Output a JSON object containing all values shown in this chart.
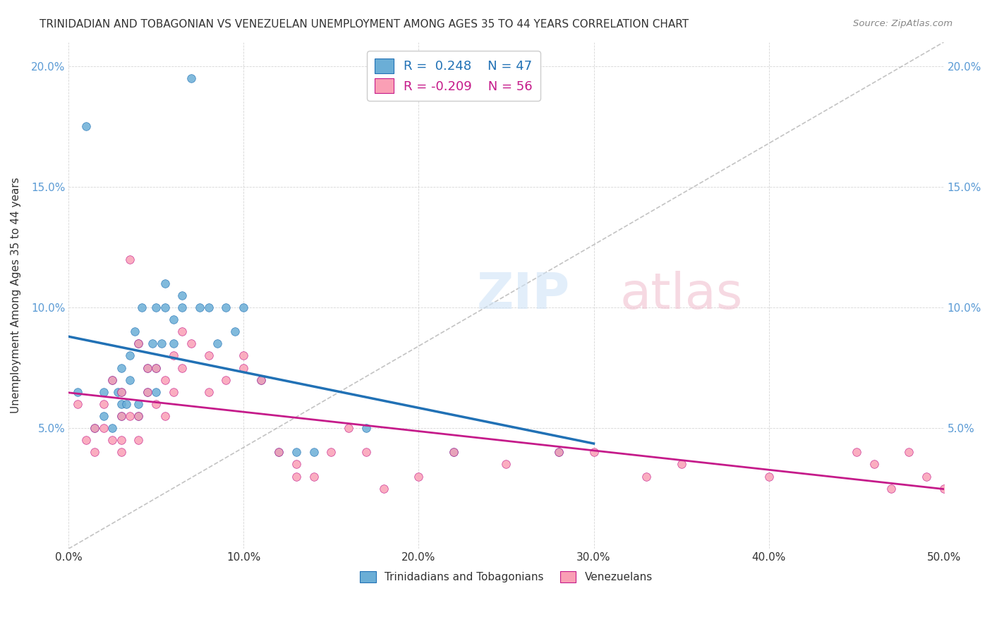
{
  "title": "TRINIDADIAN AND TOBAGONIAN VS VENEZUELAN UNEMPLOYMENT AMONG AGES 35 TO 44 YEARS CORRELATION CHART",
  "source": "Source: ZipAtlas.com",
  "xlabel": "",
  "ylabel": "Unemployment Among Ages 35 to 44 years",
  "xlim": [
    0,
    0.5
  ],
  "ylim": [
    0,
    0.21
  ],
  "xticks": [
    0.0,
    0.1,
    0.2,
    0.3,
    0.4,
    0.5
  ],
  "xticklabels": [
    "0.0%",
    "10.0%",
    "20.0%",
    "30.0%",
    "40.0%",
    "50.0%"
  ],
  "yticks": [
    0.0,
    0.05,
    0.1,
    0.15,
    0.2
  ],
  "yticklabels": [
    "",
    "5.0%",
    "10.0%",
    "15.0%",
    "20.0%"
  ],
  "color_blue": "#6baed6",
  "color_pink": "#fa9fb5",
  "color_blue_dark": "#2171b5",
  "color_pink_dark": "#c51b8a",
  "color_dashed": "#aaaaaa",
  "legend1_label": "R =  0.248    N = 47",
  "legend2_label": "R = -0.209    N = 56",
  "bottom_label1": "Trinidadians and Tobagonians",
  "bottom_label2": "Venezuelans",
  "blue_scatter_x": [
    0.005,
    0.01,
    0.015,
    0.02,
    0.02,
    0.025,
    0.025,
    0.028,
    0.03,
    0.03,
    0.03,
    0.03,
    0.033,
    0.035,
    0.035,
    0.038,
    0.04,
    0.04,
    0.04,
    0.042,
    0.045,
    0.045,
    0.048,
    0.05,
    0.05,
    0.05,
    0.053,
    0.055,
    0.055,
    0.06,
    0.06,
    0.065,
    0.065,
    0.07,
    0.075,
    0.08,
    0.085,
    0.09,
    0.095,
    0.1,
    0.11,
    0.12,
    0.13,
    0.14,
    0.17,
    0.22,
    0.28
  ],
  "blue_scatter_y": [
    0.065,
    0.175,
    0.05,
    0.055,
    0.065,
    0.05,
    0.07,
    0.065,
    0.055,
    0.06,
    0.065,
    0.075,
    0.06,
    0.07,
    0.08,
    0.09,
    0.055,
    0.06,
    0.085,
    0.1,
    0.065,
    0.075,
    0.085,
    0.065,
    0.075,
    0.1,
    0.085,
    0.1,
    0.11,
    0.085,
    0.095,
    0.1,
    0.105,
    0.195,
    0.1,
    0.1,
    0.085,
    0.1,
    0.09,
    0.1,
    0.07,
    0.04,
    0.04,
    0.04,
    0.05,
    0.04,
    0.04
  ],
  "pink_scatter_x": [
    0.005,
    0.01,
    0.015,
    0.015,
    0.02,
    0.02,
    0.025,
    0.025,
    0.03,
    0.03,
    0.03,
    0.03,
    0.035,
    0.035,
    0.04,
    0.04,
    0.04,
    0.045,
    0.045,
    0.05,
    0.05,
    0.055,
    0.055,
    0.06,
    0.06,
    0.065,
    0.065,
    0.07,
    0.08,
    0.08,
    0.09,
    0.1,
    0.1,
    0.11,
    0.12,
    0.13,
    0.13,
    0.14,
    0.15,
    0.16,
    0.17,
    0.18,
    0.2,
    0.22,
    0.25,
    0.28,
    0.3,
    0.33,
    0.35,
    0.4,
    0.45,
    0.46,
    0.47,
    0.48,
    0.49,
    0.5
  ],
  "pink_scatter_y": [
    0.06,
    0.045,
    0.04,
    0.05,
    0.05,
    0.06,
    0.045,
    0.07,
    0.055,
    0.065,
    0.04,
    0.045,
    0.055,
    0.12,
    0.045,
    0.055,
    0.085,
    0.065,
    0.075,
    0.06,
    0.075,
    0.055,
    0.07,
    0.065,
    0.08,
    0.075,
    0.09,
    0.085,
    0.065,
    0.08,
    0.07,
    0.075,
    0.08,
    0.07,
    0.04,
    0.03,
    0.035,
    0.03,
    0.04,
    0.05,
    0.04,
    0.025,
    0.03,
    0.04,
    0.035,
    0.04,
    0.04,
    0.03,
    0.035,
    0.03,
    0.04,
    0.035,
    0.025,
    0.04,
    0.03,
    0.025
  ]
}
